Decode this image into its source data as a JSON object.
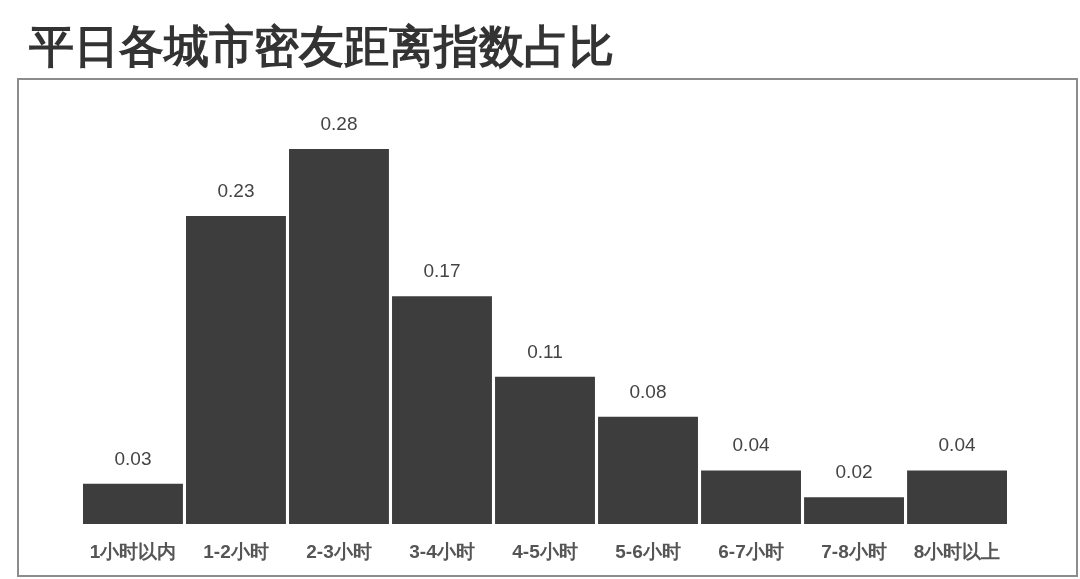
{
  "chart_data": {
    "type": "bar",
    "title": "平日各城市密友距离指数占比",
    "categories": [
      "1小时以内",
      "1-2小时",
      "2-3小时",
      "3-4小时",
      "4-5小时",
      "5-6小时",
      "6-7小时",
      "7-8小时",
      "8小时以上"
    ],
    "values": [
      0.03,
      0.23,
      0.28,
      0.17,
      0.11,
      0.08,
      0.04,
      0.02,
      0.04
    ],
    "color": "#3d3d3d",
    "data_labels": true,
    "tick_labels": "x"
  }
}
